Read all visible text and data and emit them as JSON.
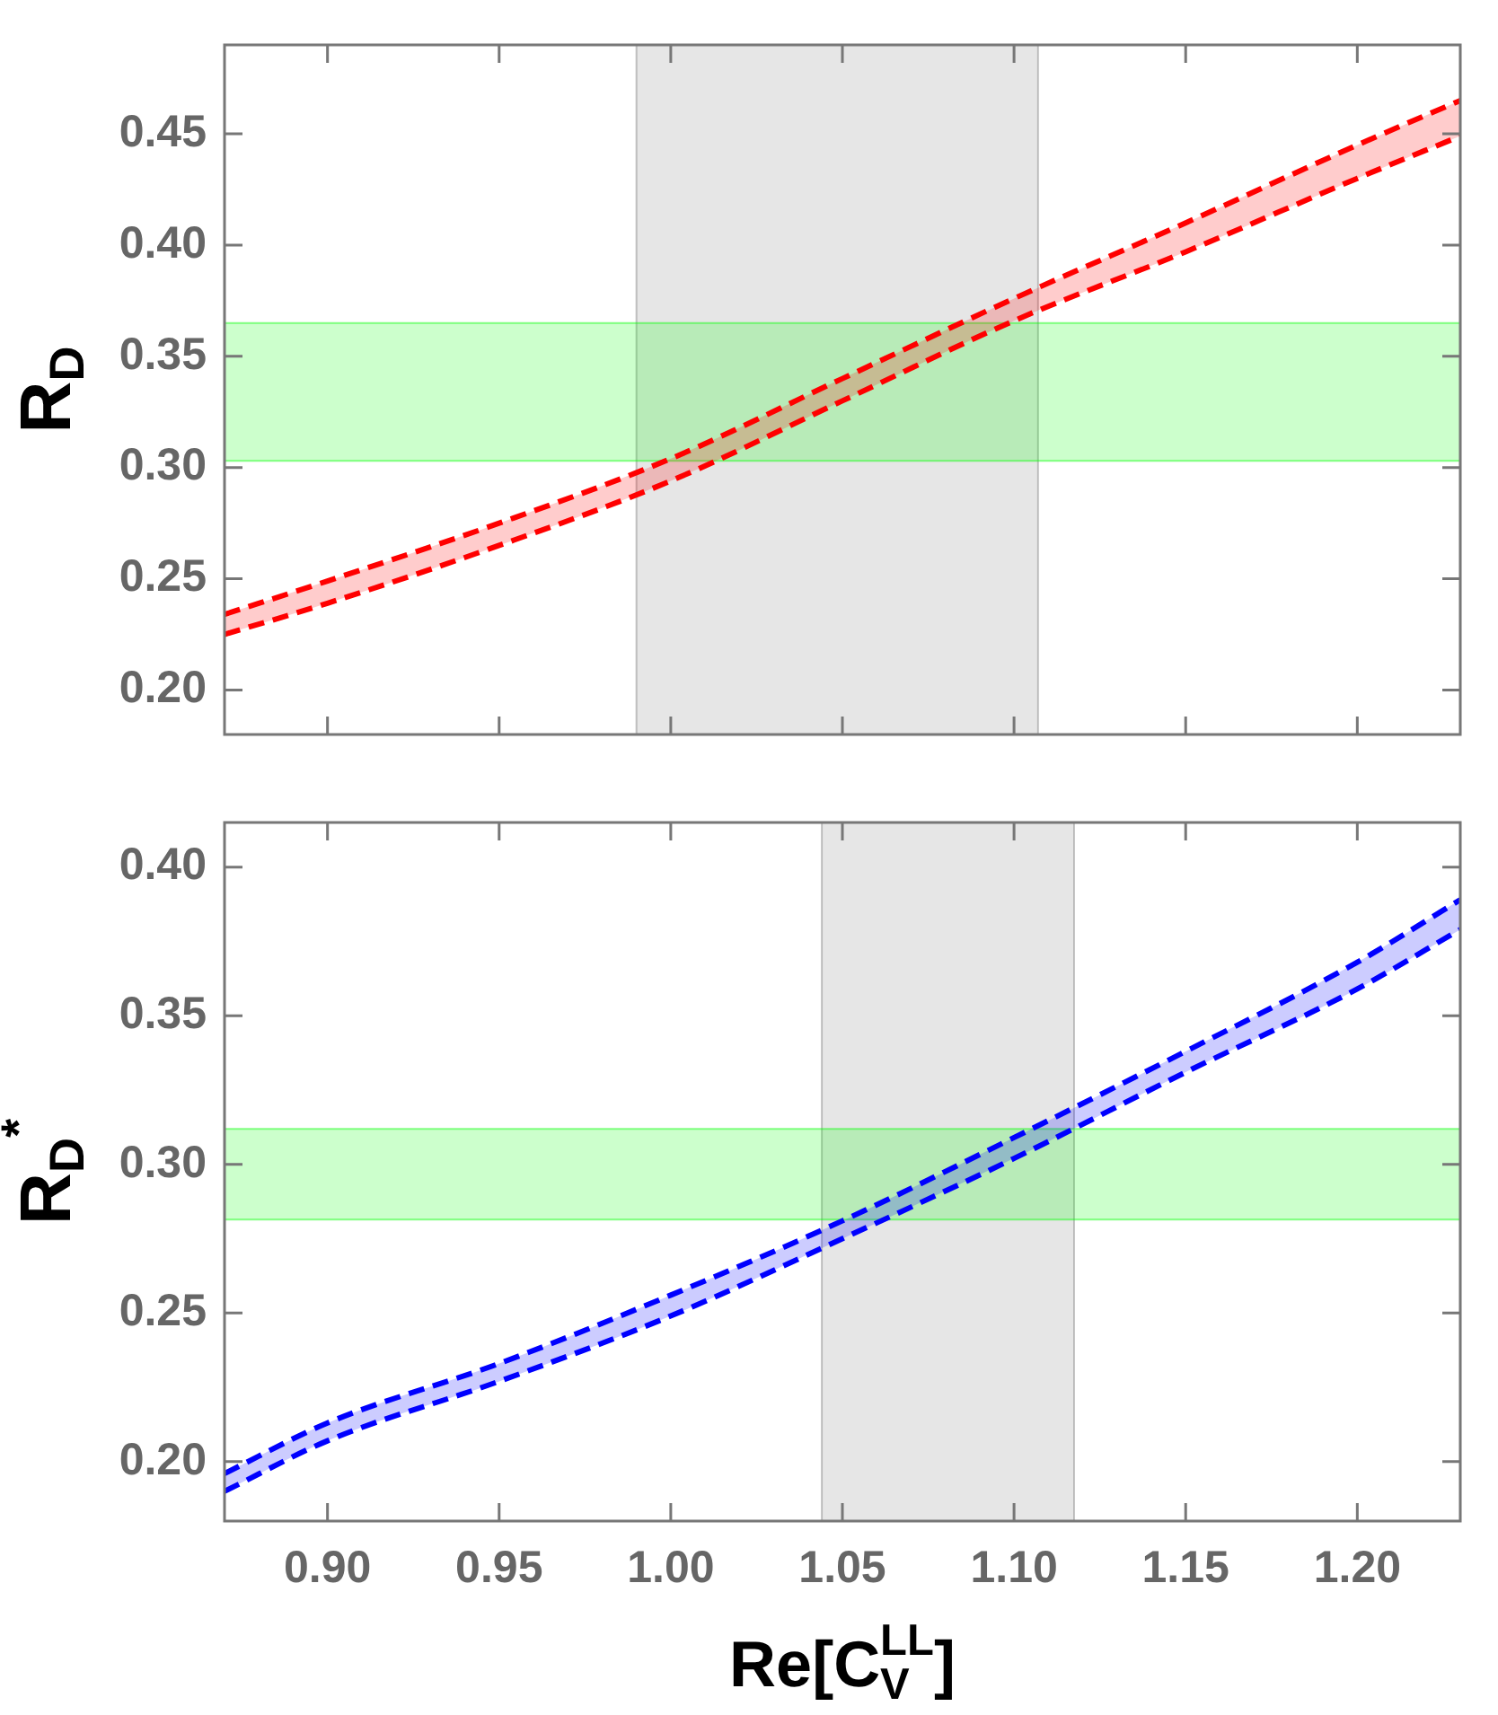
{
  "chart_data": [
    {
      "type": "line",
      "ylabel": "R$_{D}$",
      "tick_labels": "y",
      "grid": false,
      "legend": false,
      "x": [
        0.87,
        0.9,
        0.95,
        1.0,
        1.05,
        1.1,
        1.15,
        1.2,
        1.23
      ],
      "series": [
        {
          "color": "#ff0000",
          "line_style": "dashed",
          "values": [
            0.225,
            0.239,
            0.265,
            0.294,
            0.33,
            0.366,
            0.397,
            0.43,
            0.449
          ]
        },
        {
          "type": "area",
          "color": "#ff0000",
          "line_style": "dashed",
          "values": [
            0.234,
            0.249,
            0.275,
            0.304,
            0.34,
            0.376,
            0.41,
            0.445,
            0.465
          ]
        }
      ],
      "xlim": [
        0.87,
        1.23
      ],
      "xticks": [
        0.9,
        0.95,
        1.0,
        1.05,
        1.1,
        1.15,
        1.2
      ],
      "ylim": [
        0.18,
        0.49
      ],
      "yticks": [
        {
          "value": 0.2,
          "label": "0.20"
        },
        {
          "value": 0.25,
          "label": "0.25"
        },
        {
          "value": 0.3,
          "label": "0.30"
        },
        {
          "value": 0.35,
          "label": "0.35"
        },
        {
          "value": 0.4,
          "label": "0.40"
        },
        {
          "value": 0.45,
          "label": "0.45"
        }
      ],
      "bands": [
        {
          "axis": "x",
          "from": 0.99,
          "to": 1.107,
          "color": "#808080"
        },
        {
          "axis": "y",
          "from": 0.303,
          "to": 0.365,
          "color": "#00ff00"
        }
      ]
    },
    {
      "type": "line",
      "xlabel": "Re[C$_{V}$$^{LL}$]",
      "ylabel": "R$_{D}$$^{*}$",
      "grid": false,
      "legend": false,
      "x": [
        0.87,
        0.9,
        0.95,
        1.0,
        1.05,
        1.1,
        1.15,
        1.2,
        1.23
      ],
      "series": [
        {
          "color": "#0000ff",
          "line_style": "dashed",
          "values": [
            0.19,
            0.207,
            0.227,
            0.249,
            0.275,
            0.302,
            0.331,
            0.359,
            0.379
          ]
        },
        {
          "type": "area",
          "color": "#0000ff",
          "line_style": "dashed",
          "values": [
            0.196,
            0.213,
            0.233,
            0.256,
            0.281,
            0.309,
            0.338,
            0.368,
            0.389
          ]
        }
      ],
      "xlim": [
        0.87,
        1.23
      ],
      "xticks": [
        {
          "value": 0.9,
          "label": "0.90"
        },
        {
          "value": 0.95,
          "label": "0.95"
        },
        {
          "value": 1.0,
          "label": "1.00"
        },
        {
          "value": 1.05,
          "label": "1.05"
        },
        {
          "value": 1.1,
          "label": "1.10"
        },
        {
          "value": 1.15,
          "label": "1.15"
        },
        {
          "value": 1.2,
          "label": "1.20"
        }
      ],
      "ylim": [
        0.18,
        0.415
      ],
      "yticks": [
        {
          "value": 0.2,
          "label": "0.20"
        },
        {
          "value": 0.25,
          "label": "0.25"
        },
        {
          "value": 0.3,
          "label": "0.30"
        },
        {
          "value": 0.35,
          "label": "0.35"
        },
        {
          "value": 0.4,
          "label": "0.40"
        }
      ],
      "bands": [
        {
          "axis": "x",
          "from": 1.044,
          "to": 1.1175,
          "color": "#808080"
        },
        {
          "axis": "y",
          "from": 0.2814,
          "to": 0.3119,
          "color": "#00ff00"
        }
      ]
    }
  ]
}
